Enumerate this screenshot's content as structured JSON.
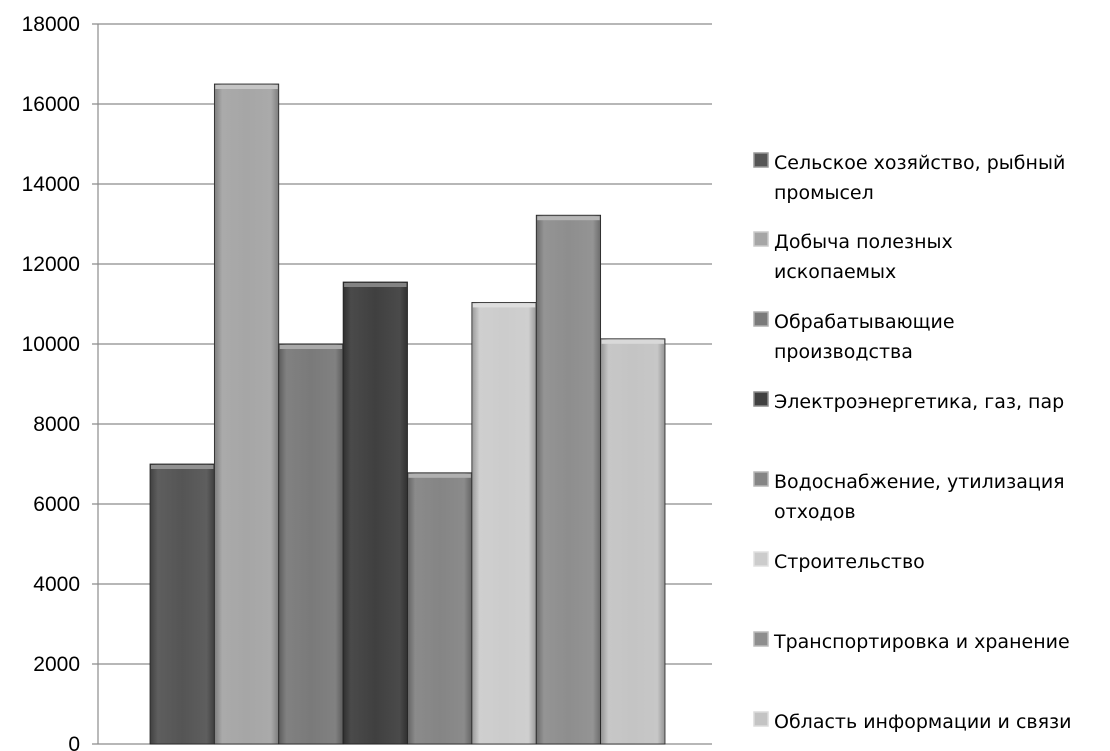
{
  "chart_data": {
    "type": "bar",
    "title": "",
    "xlabel": "",
    "ylabel": "",
    "ylim": [
      0,
      18000
    ],
    "yticks": [
      0,
      2000,
      4000,
      6000,
      8000,
      10000,
      12000,
      14000,
      16000,
      18000
    ],
    "grid": true,
    "legend_position": "right",
    "series": [
      {
        "name": "Сельское хозяйство, рыбный промысел",
        "legend_lines": [
          "Сельское хозяйство, рыбный",
          "промысел"
        ],
        "value": 7000,
        "color": "#555555"
      },
      {
        "name": "Добыча полезных ископаемых",
        "legend_lines": [
          "Добыча полезных",
          "ископаемых"
        ],
        "value": 16500,
        "color": "#a6a6a6"
      },
      {
        "name": "Обрабатывающие производства",
        "legend_lines": [
          "Обрабатывающие",
          "производства"
        ],
        "value": 10000,
        "color": "#7a7a7a"
      },
      {
        "name": "Электроэнергетика, газ, пар",
        "legend_lines": [
          "Электроэнергетика, газ, пар"
        ],
        "value": 11550,
        "color": "#404040"
      },
      {
        "name": "Водоснабжение, утилизация отходов",
        "legend_lines": [
          "Водоснабжение, утилизация",
          "отходов"
        ],
        "value": 6780,
        "color": "#858585"
      },
      {
        "name": "Строительство",
        "legend_lines": [
          "Строительство"
        ],
        "value": 11040,
        "color": "#cccccc"
      },
      {
        "name": "Транспортировка и хранение",
        "legend_lines": [
          "Транспортировка и хранение"
        ],
        "value": 13220,
        "color": "#8e8e8e"
      },
      {
        "name": "Область информации и связи",
        "legend_lines": [
          "Область информации и связи"
        ],
        "value": 10130,
        "color": "#c4c4c4"
      }
    ]
  }
}
